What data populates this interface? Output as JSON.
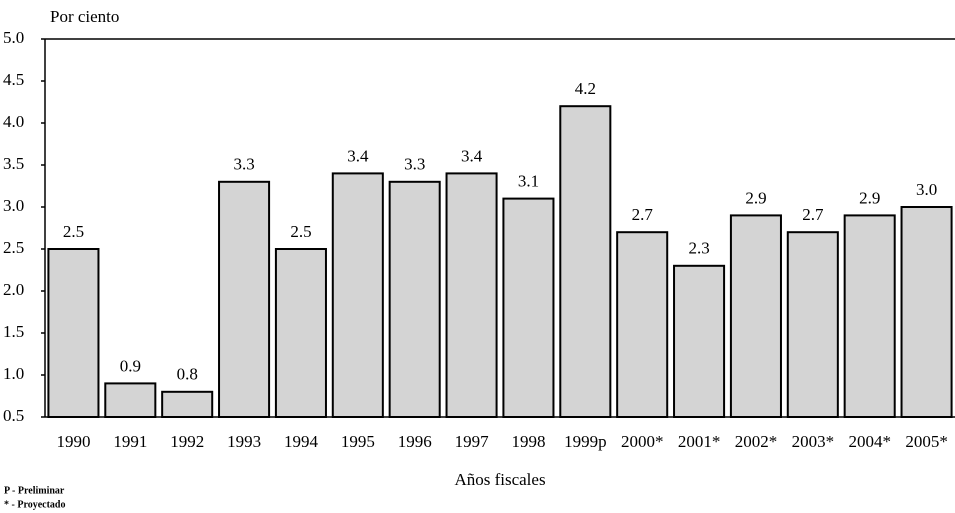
{
  "chart_data": {
    "type": "bar",
    "y_axis_label": "Por ciento",
    "x_axis_label": "Años fiscales",
    "footnotes": [
      "P - Preliminar",
      "* - Proyectado"
    ],
    "categories": [
      "1990",
      "1991",
      "1992",
      "1993",
      "1994",
      "1995",
      "1996",
      "1997",
      "1998",
      "1999p",
      "2000*",
      "2001*",
      "2002*",
      "2003*",
      "2004*",
      "2005*"
    ],
    "values": [
      2.5,
      0.9,
      0.8,
      3.3,
      2.5,
      3.4,
      3.3,
      3.4,
      3.1,
      4.2,
      2.7,
      2.3,
      2.9,
      2.7,
      2.9,
      3.0
    ],
    "value_labels": [
      "2.5",
      "0.9",
      "0.8",
      "3.3",
      "2.5",
      "3.4",
      "3.3",
      "3.4",
      "3.1",
      "4.2",
      "2.7",
      "2.3",
      "2.9",
      "2.7",
      "2.9",
      "3.0"
    ],
    "color": "#d4d4d4",
    "ylim": [
      0.5,
      5.0
    ],
    "yticks": [
      {
        "value": 0.5,
        "label": "0.5"
      },
      {
        "value": 1,
        "label": "1.0"
      },
      {
        "value": 1.5,
        "label": "1.5"
      },
      {
        "value": 2,
        "label": "2.0"
      },
      {
        "value": 2.5,
        "label": "2.5"
      },
      {
        "value": 3,
        "label": "3.0"
      },
      {
        "value": 3.5,
        "label": "3.5"
      },
      {
        "value": 4,
        "label": "4.0"
      },
      {
        "value": 4.5,
        "label": "4.5"
      },
      {
        "value": 5,
        "label": "5.0"
      }
    ],
    "grid": false
  }
}
